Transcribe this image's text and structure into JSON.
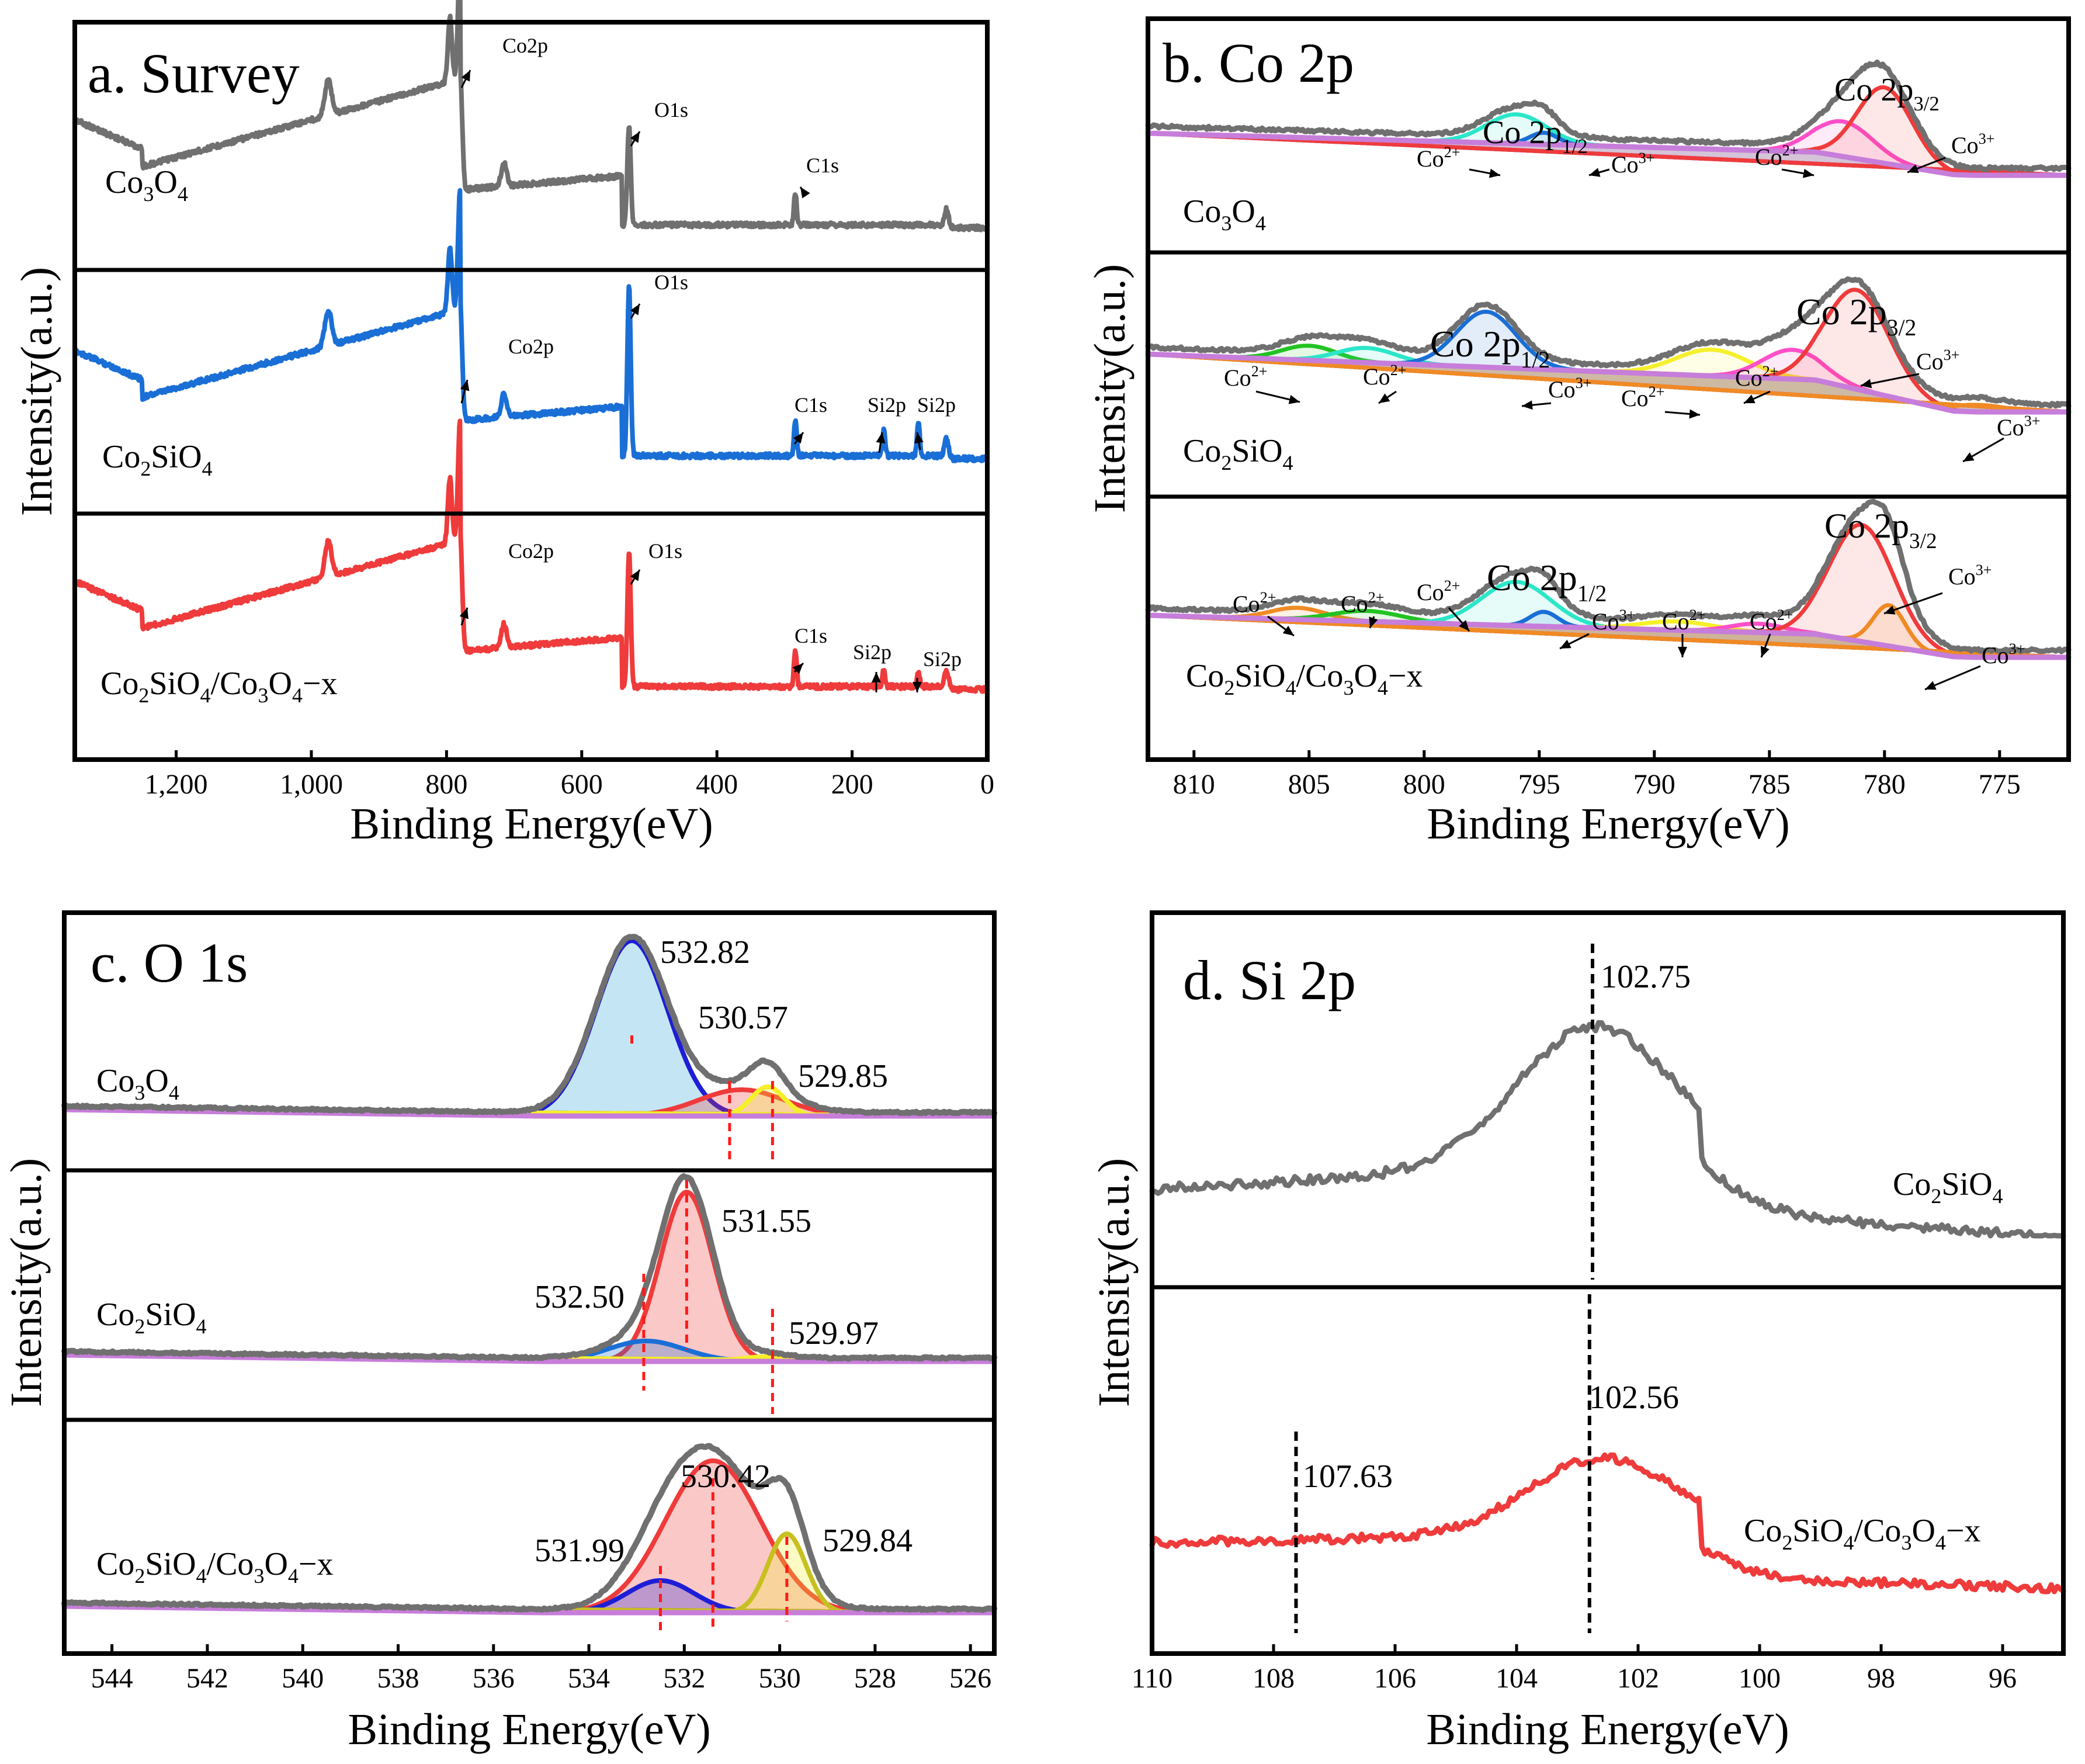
{
  "chart_data": [
    {
      "id": "a",
      "type": "line",
      "title": "a. Survey",
      "xlabel": "Binding Energy(eV)",
      "ylabel": "Intensity(a.u.)",
      "xlim": [
        1350,
        0
      ],
      "xticks": [
        1200,
        1000,
        800,
        600,
        400,
        200,
        0
      ],
      "xtick_labels": [
        "1,200",
        "1,000",
        "800",
        "600",
        "400",
        "200",
        "0"
      ],
      "series": [
        {
          "name": "Co3O4",
          "color": "#707070",
          "peaks": [
            {
              "label": "Co2p",
              "energy": 780
            },
            {
              "label": "O1s",
              "energy": 530
            },
            {
              "label": "C1s",
              "energy": 284
            }
          ]
        },
        {
          "name": "Co2SiO4",
          "color": "#1a6fd6",
          "peaks": [
            {
              "label": "Co2p",
              "energy": 780
            },
            {
              "label": "O1s",
              "energy": 530
            },
            {
              "label": "C1s",
              "energy": 284
            },
            {
              "label": "Si2p",
              "energy": 153
            },
            {
              "label": "Si2p",
              "energy": 102
            }
          ]
        },
        {
          "name": "Co2SiO4/Co3O4−x",
          "color": "#ef3b3b",
          "peaks": [
            {
              "label": "Co2p",
              "energy": 780
            },
            {
              "label": "O1s",
              "energy": 530
            },
            {
              "label": "C1s",
              "energy": 284
            },
            {
              "label": "Si2p",
              "energy": 153
            },
            {
              "label": "Si2p",
              "energy": 102
            }
          ]
        }
      ]
    },
    {
      "id": "b",
      "type": "line",
      "title": "b. Co 2p",
      "xlabel": "Binding Energy(eV)",
      "ylabel": "Intensity(a.u.)",
      "xlim": [
        812,
        772
      ],
      "xticks": [
        810,
        805,
        800,
        795,
        790,
        785,
        780,
        775
      ],
      "xtick_labels": [
        "810",
        "805",
        "800",
        "795",
        "790",
        "785",
        "780",
        "775"
      ],
      "series": [
        {
          "name": "Co3O4",
          "main_labels": [
            "Co 2p1/2",
            "Co 2p3/2"
          ],
          "components": [
            "Co2+",
            "Co3+",
            "Co2+",
            "Co3+"
          ]
        },
        {
          "name": "Co2SiO4",
          "main_labels": [
            "Co 2p1/2",
            "Co 2p3/2"
          ],
          "components": [
            "Co2+",
            "Co2+",
            "Co3+",
            "Co2+",
            "Co2+",
            "Co3+",
            "Co3+"
          ]
        },
        {
          "name": "Co2SiO4/Co3O4−x",
          "main_labels": [
            "Co 2p1/2",
            "Co 2p3/2"
          ],
          "components": [
            "Co2+",
            "Co2+",
            "Co2+",
            "Co3+",
            "Co2+",
            "Co2+",
            "Co3+",
            "Co3+"
          ]
        }
      ]
    },
    {
      "id": "c",
      "type": "line",
      "title": "c. O 1s",
      "xlabel": "Binding Energy(eV)",
      "ylabel": "Intensity(a.u.)",
      "xlim": [
        545,
        525.5
      ],
      "xticks": [
        544,
        542,
        540,
        538,
        536,
        534,
        532,
        530,
        528,
        526
      ],
      "xtick_labels": [
        "544",
        "542",
        "540",
        "538",
        "536",
        "534",
        "532",
        "530",
        "528",
        "526"
      ],
      "series": [
        {
          "name": "Co3O4",
          "peak_positions": [
            "532.82",
            "530.57",
            "529.85"
          ]
        },
        {
          "name": "Co2SiO4",
          "peak_positions": [
            "531.55",
            "532.50",
            "529.97"
          ]
        },
        {
          "name": "Co2SiO4/Co3O4−x",
          "peak_positions": [
            "530.42",
            "531.99",
            "529.84"
          ]
        }
      ]
    },
    {
      "id": "d",
      "type": "line",
      "title": "d. Si 2p",
      "xlabel": "Binding Energy(eV)",
      "ylabel": "Intensity(a.u.)",
      "xlim": [
        110,
        95
      ],
      "xticks": [
        110,
        108,
        106,
        104,
        102,
        100,
        98,
        96
      ],
      "xtick_labels": [
        "110",
        "108",
        "106",
        "104",
        "102",
        "100",
        "98",
        "96"
      ],
      "series": [
        {
          "name": "Co2SiO4",
          "color": "#707070",
          "peak_positions": [
            "102.75"
          ]
        },
        {
          "name": "Co2SiO4/Co3O4−x",
          "color": "#ef3b3b",
          "peak_positions": [
            "102.56",
            "107.63"
          ]
        }
      ]
    }
  ],
  "colors": {
    "gray": "#707070",
    "blue": "#1a6fd6",
    "red": "#ef3b3b",
    "purple": "#c77dda",
    "darkblue": "#1e1ed6",
    "yellow": "#f5f02a",
    "cyan": "#2ce6c8",
    "green": "#22c322",
    "magenta": "#ff4fc8",
    "orange": "#f08a24"
  }
}
